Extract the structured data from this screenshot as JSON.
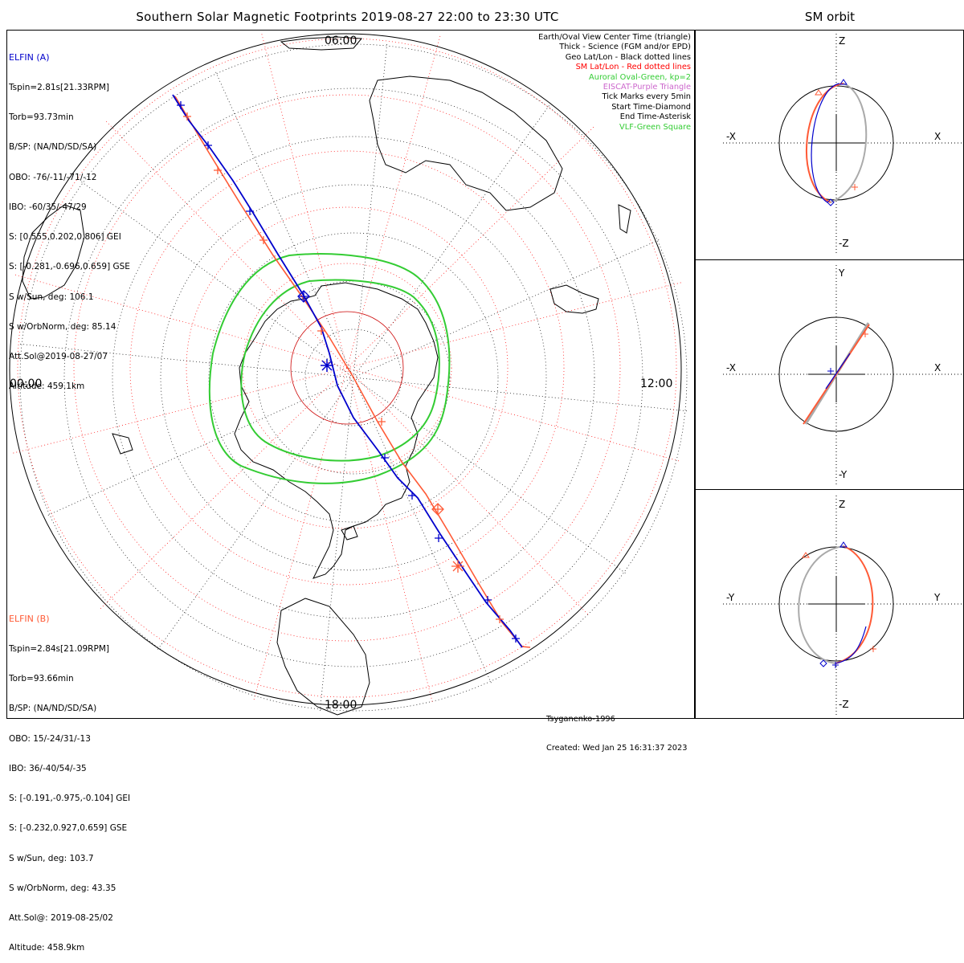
{
  "title": "Southern Solar Magnetic Footprints 2019-08-27 22:00 to 23:30 UTC",
  "orbit_title": "SM orbit",
  "elfin_a": {
    "header": "ELFIN (A)",
    "lines": [
      "Tspin=2.81s[21.33RPM]",
      "Torb=93.73min",
      "B/SP: (NA/ND/SD/SA)",
      "OBO: -76/-11/-71/-12",
      "IBO: -60/35/-47/29",
      "S: [0.555,0.202,0.806] GEI",
      "S: [-0.281,-0.696,0.659] GSE",
      "S w/Sun, deg: 106.1",
      "S w/OrbNorm, deg: 85.14",
      "Att.Sol@2019-08-27/07",
      "Altitude: 459.1km"
    ],
    "color": "#0000cc"
  },
  "elfin_b": {
    "header": "ELFIN (B)",
    "lines": [
      "Tspin=2.84s[21.09RPM]",
      "Torb=93.66min",
      "B/SP: (NA/ND/SD/SA)",
      "OBO: 15/-24/31/-13",
      "IBO: 36/-40/54/-35",
      "S: [-0.191,-0.975,-0.104] GEI",
      "S: [-0.232,0.927,0.659] GSE",
      "S w/Sun, deg: 103.7",
      "S w/OrbNorm, deg: 43.35",
      "Att.Sol@: 2019-08-25/02",
      "Altitude: 458.9km"
    ],
    "color": "#ff5a36"
  },
  "legend": [
    {
      "text": "Earth/Oval View Center Time (triangle)",
      "color": "#000000"
    },
    {
      "text": "Thick - Science (FGM and/or EPD)",
      "color": "#000000"
    },
    {
      "text": "Geo Lat/Lon - Black dotted lines",
      "color": "#000000"
    },
    {
      "text": "SM Lat/Lon - Red dotted lines",
      "color": "#ff0000"
    },
    {
      "text": "Auroral Oval-Green, kp=2",
      "color": "#33cc33"
    },
    {
      "text": "EISCAT-Purple Triangle",
      "color": "#cc66cc"
    },
    {
      "text": "Tick Marks every 5min",
      "color": "#000000"
    },
    {
      "text": "Start Time-Diamond",
      "color": "#000000"
    },
    {
      "text": "End Time-Asterisk",
      "color": "#000000"
    },
    {
      "text": "VLF-Green Square",
      "color": "#33cc33"
    }
  ],
  "mlt_labels": {
    "top": "06:00",
    "left": "00:00",
    "right": "12:00",
    "bottom": "18:00"
  },
  "footer": {
    "model": "Tsyganenko-1996",
    "created": "Created: Wed Jan 25 16:31:37 2023"
  },
  "orbit_panels": [
    {
      "left": "-X",
      "right": "X",
      "top": "Z",
      "bottom": "-Z"
    },
    {
      "left": "-X",
      "right": "X",
      "top": "Y",
      "bottom": "-Y"
    },
    {
      "left": "-Y",
      "right": "Y",
      "top": "Z",
      "bottom": "-Z"
    }
  ],
  "colors": {
    "elfin_a": "#0000cc",
    "elfin_b": "#ff5a36",
    "oval": "#33cc33",
    "grid_sm": "#ff0000",
    "grid_geo": "#000000",
    "orbit_gray": "#aaaaaa"
  }
}
